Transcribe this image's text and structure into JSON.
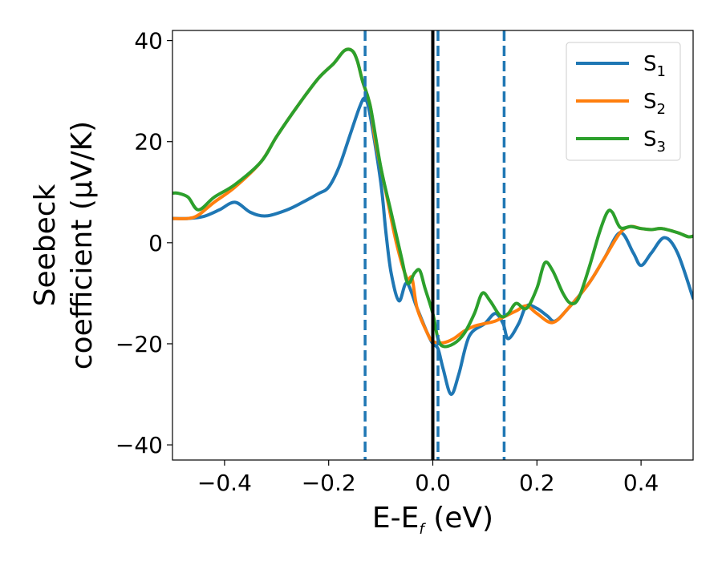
{
  "chart_data": {
    "type": "line",
    "xlabel": "E-E",
    "xlabel_sub": "f",
    "xlabel_unit": " (eV)",
    "ylabel_line1": "Seebeck",
    "ylabel_line2": "coefficient  (μV/K)",
    "xlim": [
      -0.5,
      0.5
    ],
    "ylim": [
      -43,
      42
    ],
    "xticks": [
      -0.4,
      -0.2,
      0.0,
      0.2,
      0.4
    ],
    "xtick_labels": [
      "−0.4",
      "−0.2",
      "0.0",
      "0.2",
      "0.4"
    ],
    "yticks": [
      -40,
      -20,
      0,
      20,
      40
    ],
    "ytick_labels": [
      "−40",
      "−20",
      "0",
      "20",
      "40"
    ],
    "grid": false,
    "legend_position": "top-right",
    "vlines": [
      {
        "x": 0.0,
        "style": "solid",
        "color": "#000000"
      },
      {
        "x": -0.13,
        "style": "dashed",
        "color": "#1f77b4"
      },
      {
        "x": 0.01,
        "style": "dashed",
        "color": "#1f77b4"
      },
      {
        "x": 0.137,
        "style": "dashed",
        "color": "#1f77b4"
      }
    ],
    "series": [
      {
        "name": "S",
        "sub": "1",
        "color": "#1f77b4",
        "points": [
          [
            -0.5,
            4.8
          ],
          [
            -0.47,
            4.8
          ],
          [
            -0.44,
            5.2
          ],
          [
            -0.41,
            6.5
          ],
          [
            -0.38,
            8
          ],
          [
            -0.35,
            6
          ],
          [
            -0.32,
            5.3
          ],
          [
            -0.28,
            6.5
          ],
          [
            -0.25,
            8
          ],
          [
            -0.22,
            9.7
          ],
          [
            -0.2,
            11
          ],
          [
            -0.18,
            15
          ],
          [
            -0.16,
            21
          ],
          [
            -0.14,
            27
          ],
          [
            -0.13,
            28.5
          ],
          [
            -0.12,
            25
          ],
          [
            -0.1,
            12
          ],
          [
            -0.09,
            2
          ],
          [
            -0.08,
            -6
          ],
          [
            -0.065,
            -11.5
          ],
          [
            -0.05,
            -8
          ],
          [
            -0.03,
            -13
          ],
          [
            -0.01,
            -18
          ],
          [
            0.0,
            -20
          ],
          [
            0.01,
            -21
          ],
          [
            0.02,
            -25
          ],
          [
            0.035,
            -30
          ],
          [
            0.05,
            -26
          ],
          [
            0.07,
            -18.5
          ],
          [
            0.1,
            -16
          ],
          [
            0.12,
            -14
          ],
          [
            0.135,
            -16
          ],
          [
            0.145,
            -19
          ],
          [
            0.165,
            -16
          ],
          [
            0.18,
            -12.5
          ],
          [
            0.2,
            -13
          ],
          [
            0.22,
            -14.5
          ],
          [
            0.235,
            -15.5
          ],
          [
            0.26,
            -13
          ],
          [
            0.3,
            -8
          ],
          [
            0.33,
            -3
          ],
          [
            0.36,
            2
          ],
          [
            0.385,
            -2
          ],
          [
            0.4,
            -4.5
          ],
          [
            0.42,
            -2
          ],
          [
            0.445,
            1
          ],
          [
            0.47,
            -2
          ],
          [
            0.5,
            -11
          ]
        ]
      },
      {
        "name": "S",
        "sub": "2",
        "color": "#ff7f0e",
        "points": [
          [
            -0.5,
            4.8
          ],
          [
            -0.47,
            4.8
          ],
          [
            -0.45,
            5.5
          ],
          [
            -0.42,
            8
          ],
          [
            -0.38,
            11
          ],
          [
            -0.33,
            16
          ],
          [
            -0.3,
            21
          ],
          [
            -0.26,
            27
          ],
          [
            -0.22,
            32.5
          ],
          [
            -0.19,
            35.5
          ],
          [
            -0.17,
            38
          ],
          [
            -0.155,
            38
          ],
          [
            -0.145,
            36
          ],
          [
            -0.135,
            32
          ],
          [
            -0.12,
            27
          ],
          [
            -0.11,
            20
          ],
          [
            -0.09,
            10
          ],
          [
            -0.07,
            0
          ],
          [
            -0.05,
            -7
          ],
          [
            -0.04,
            -7
          ],
          [
            -0.03,
            -13
          ],
          [
            -0.01,
            -18
          ],
          [
            0.0,
            -19.5
          ],
          [
            0.02,
            -19.8
          ],
          [
            0.04,
            -19
          ],
          [
            0.06,
            -17.5
          ],
          [
            0.08,
            -16.5
          ],
          [
            0.1,
            -16
          ],
          [
            0.12,
            -15.5
          ],
          [
            0.14,
            -14.5
          ],
          [
            0.16,
            -13.5
          ],
          [
            0.18,
            -12.5
          ],
          [
            0.2,
            -14
          ],
          [
            0.23,
            -15.8
          ],
          [
            0.26,
            -13
          ],
          [
            0.3,
            -8
          ],
          [
            0.33,
            -3
          ],
          [
            0.36,
            2
          ],
          [
            0.38,
            3.2
          ],
          [
            0.4,
            2.8
          ],
          [
            0.42,
            2.6
          ],
          [
            0.44,
            2.8
          ],
          [
            0.47,
            2
          ],
          [
            0.49,
            1.2
          ],
          [
            0.5,
            1.3
          ]
        ]
      },
      {
        "name": "S",
        "sub": "3",
        "color": "#2ca02c",
        "points": [
          [
            -0.5,
            9.8
          ],
          [
            -0.49,
            9.8
          ],
          [
            -0.47,
            9
          ],
          [
            -0.45,
            6.5
          ],
          [
            -0.42,
            9
          ],
          [
            -0.38,
            11.5
          ],
          [
            -0.33,
            16
          ],
          [
            -0.3,
            21
          ],
          [
            -0.26,
            27
          ],
          [
            -0.22,
            32.5
          ],
          [
            -0.19,
            35.5
          ],
          [
            -0.17,
            38
          ],
          [
            -0.155,
            38
          ],
          [
            -0.145,
            36
          ],
          [
            -0.135,
            32
          ],
          [
            -0.12,
            27
          ],
          [
            -0.1,
            15
          ],
          [
            -0.08,
            6
          ],
          [
            -0.06,
            -3
          ],
          [
            -0.048,
            -8
          ],
          [
            -0.035,
            -6
          ],
          [
            -0.025,
            -5.5
          ],
          [
            -0.015,
            -9
          ],
          [
            0.0,
            -14
          ],
          [
            0.01,
            -19
          ],
          [
            0.02,
            -20.5
          ],
          [
            0.04,
            -20
          ],
          [
            0.06,
            -18
          ],
          [
            0.08,
            -14
          ],
          [
            0.095,
            -10
          ],
          [
            0.11,
            -11.5
          ],
          [
            0.13,
            -14.5
          ],
          [
            0.145,
            -14
          ],
          [
            0.16,
            -12
          ],
          [
            0.18,
            -13
          ],
          [
            0.2,
            -9
          ],
          [
            0.215,
            -4
          ],
          [
            0.23,
            -5.5
          ],
          [
            0.25,
            -10
          ],
          [
            0.265,
            -12
          ],
          [
            0.28,
            -11
          ],
          [
            0.3,
            -5
          ],
          [
            0.32,
            2
          ],
          [
            0.335,
            6
          ],
          [
            0.345,
            6
          ],
          [
            0.36,
            3
          ],
          [
            0.38,
            3.2
          ],
          [
            0.4,
            2.8
          ],
          [
            0.42,
            2.6
          ],
          [
            0.44,
            2.8
          ],
          [
            0.47,
            2
          ],
          [
            0.49,
            1.2
          ],
          [
            0.5,
            1.3
          ]
        ]
      }
    ]
  }
}
